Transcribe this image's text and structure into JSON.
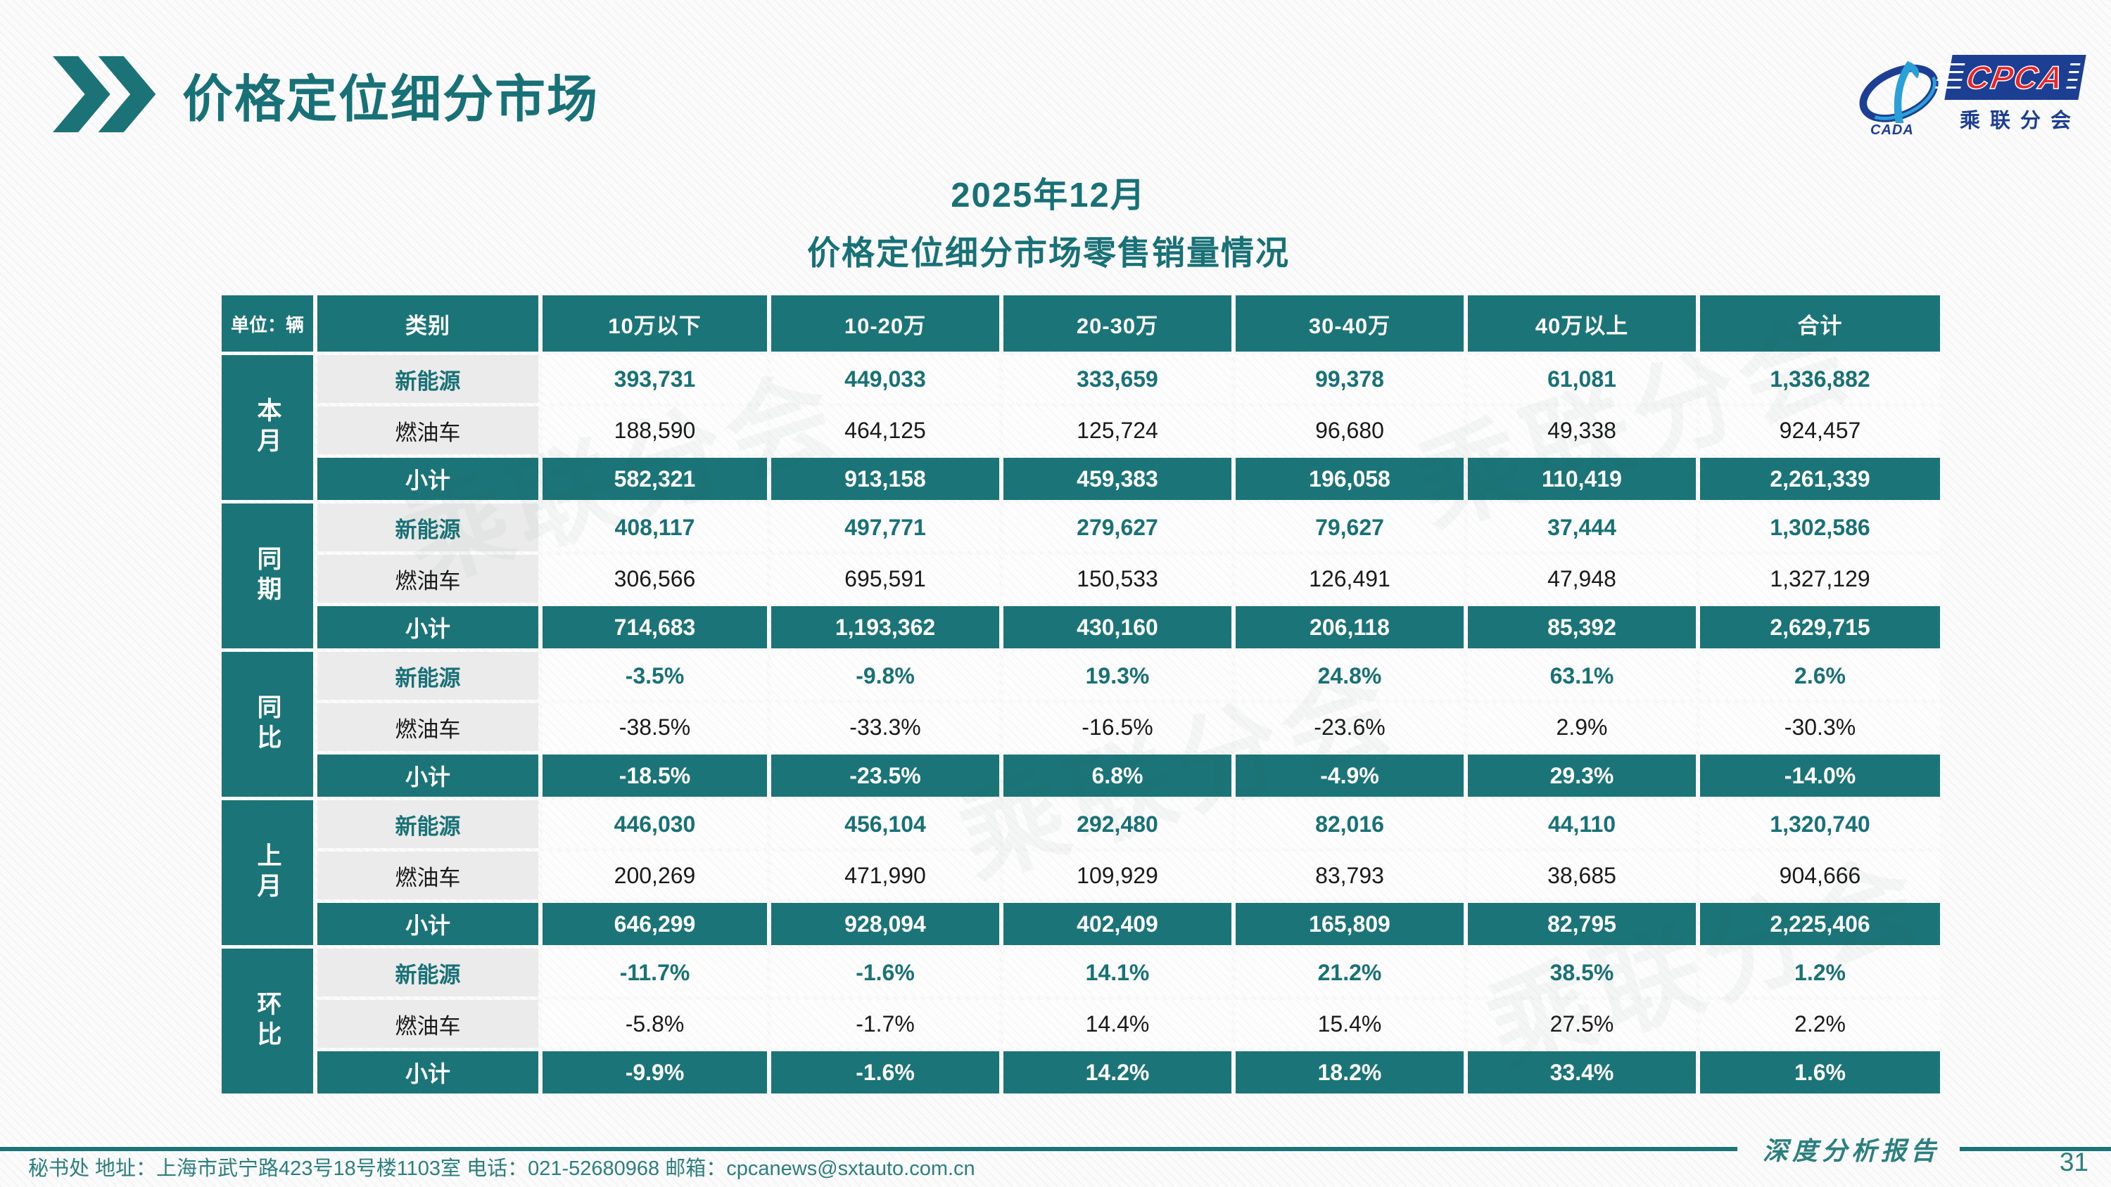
{
  "page": {
    "heading": "价格定位细分市场",
    "page_number": "31"
  },
  "logo": {
    "cpca": "CPCA",
    "cada": "CADA",
    "subtitle": "乘联分会"
  },
  "table_title": {
    "line1": "2025年12月",
    "line2": "价格定位细分市场零售销量情况"
  },
  "table": {
    "unit_label": "单位：辆",
    "category_header": "类别",
    "columns": [
      "10万以下",
      "10-20万",
      "20-30万",
      "30-40万",
      "40万以上",
      "合计"
    ],
    "groups": [
      {
        "label": "本月",
        "rows": [
          {
            "label": "新能源",
            "kind": "nev",
            "values": [
              "393,731",
              "449,033",
              "333,659",
              "99,378",
              "61,081",
              "1,336,882"
            ]
          },
          {
            "label": "燃油车",
            "kind": "fuel",
            "values": [
              "188,590",
              "464,125",
              "125,724",
              "96,680",
              "49,338",
              "924,457"
            ]
          },
          {
            "label": "小计",
            "kind": "subtotal",
            "values": [
              "582,321",
              "913,158",
              "459,383",
              "196,058",
              "110,419",
              "2,261,339"
            ]
          }
        ]
      },
      {
        "label": "同期",
        "rows": [
          {
            "label": "新能源",
            "kind": "nev",
            "values": [
              "408,117",
              "497,771",
              "279,627",
              "79,627",
              "37,444",
              "1,302,586"
            ]
          },
          {
            "label": "燃油车",
            "kind": "fuel",
            "values": [
              "306,566",
              "695,591",
              "150,533",
              "126,491",
              "47,948",
              "1,327,129"
            ]
          },
          {
            "label": "小计",
            "kind": "subtotal",
            "values": [
              "714,683",
              "1,193,362",
              "430,160",
              "206,118",
              "85,392",
              "2,629,715"
            ]
          }
        ]
      },
      {
        "label": "同比",
        "rows": [
          {
            "label": "新能源",
            "kind": "nev",
            "values": [
              "-3.5%",
              "-9.8%",
              "19.3%",
              "24.8%",
              "63.1%",
              "2.6%"
            ]
          },
          {
            "label": "燃油车",
            "kind": "fuel",
            "values": [
              "-38.5%",
              "-33.3%",
              "-16.5%",
              "-23.6%",
              "2.9%",
              "-30.3%"
            ]
          },
          {
            "label": "小计",
            "kind": "subtotal",
            "values": [
              "-18.5%",
              "-23.5%",
              "6.8%",
              "-4.9%",
              "29.3%",
              "-14.0%"
            ]
          }
        ]
      },
      {
        "label": "上月",
        "rows": [
          {
            "label": "新能源",
            "kind": "nev",
            "values": [
              "446,030",
              "456,104",
              "292,480",
              "82,016",
              "44,110",
              "1,320,740"
            ]
          },
          {
            "label": "燃油车",
            "kind": "fuel",
            "values": [
              "200,269",
              "471,990",
              "109,929",
              "83,793",
              "38,685",
              "904,666"
            ]
          },
          {
            "label": "小计",
            "kind": "subtotal",
            "values": [
              "646,299",
              "928,094",
              "402,409",
              "165,809",
              "82,795",
              "2,225,406"
            ]
          }
        ]
      },
      {
        "label": "环比",
        "rows": [
          {
            "label": "新能源",
            "kind": "nev",
            "values": [
              "-11.7%",
              "-1.6%",
              "14.1%",
              "21.2%",
              "38.5%",
              "1.2%"
            ]
          },
          {
            "label": "燃油车",
            "kind": "fuel",
            "values": [
              "-5.8%",
              "-1.7%",
              "14.4%",
              "15.4%",
              "27.5%",
              "2.2%"
            ]
          },
          {
            "label": "小计",
            "kind": "subtotal",
            "values": [
              "-9.9%",
              "-1.6%",
              "14.2%",
              "18.2%",
              "33.4%",
              "1.6%"
            ]
          }
        ]
      }
    ]
  },
  "watermark_text": "乘联分会",
  "footer": {
    "info": "秘书处   地址：上海市武宁路423号18号楼1103室  电话：021-52680968   邮箱：cpcanews@sxtauto.com.cn",
    "report_label": "深度分析报告"
  },
  "colors": {
    "accent_teal": "#1b7578",
    "logo_blue": "#1c3e93",
    "logo_red": "#e8262a"
  }
}
